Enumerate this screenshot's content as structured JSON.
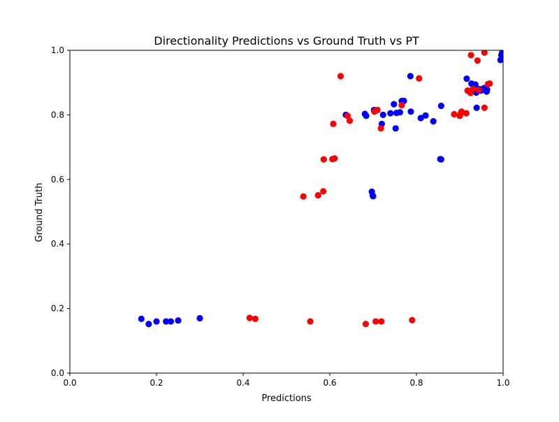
{
  "chart_data": {
    "type": "scatter",
    "title": "Directionality Predictions vs Ground Truth vs PT",
    "xlabel": "Predictions",
    "ylabel": "Ground Truth",
    "xlim": [
      0.0,
      1.0
    ],
    "ylim": [
      0.0,
      1.0
    ],
    "xticks": [
      "0.0",
      "0.2",
      "0.4",
      "0.6",
      "0.8",
      "1.0"
    ],
    "yticks": [
      "0.0",
      "0.2",
      "0.4",
      "0.6",
      "0.8",
      "1.0"
    ],
    "grid": false,
    "legend": null,
    "series": [
      {
        "color": "#0000ff",
        "points": [
          [
            0.165,
            0.168
          ],
          [
            0.182,
            0.152
          ],
          [
            0.2,
            0.16
          ],
          [
            0.222,
            0.16
          ],
          [
            0.233,
            0.16
          ],
          [
            0.25,
            0.163
          ],
          [
            0.3,
            0.17
          ],
          [
            0.637,
            0.8
          ],
          [
            0.681,
            0.803
          ],
          [
            0.684,
            0.797
          ],
          [
            0.697,
            0.562
          ],
          [
            0.699,
            0.55
          ],
          [
            0.7,
            0.548
          ],
          [
            0.702,
            0.815
          ],
          [
            0.72,
            0.772
          ],
          [
            0.723,
            0.8
          ],
          [
            0.74,
            0.805
          ],
          [
            0.748,
            0.833
          ],
          [
            0.752,
            0.758
          ],
          [
            0.754,
            0.806
          ],
          [
            0.762,
            0.808
          ],
          [
            0.766,
            0.843
          ],
          [
            0.771,
            0.843
          ],
          [
            0.786,
            0.92
          ],
          [
            0.787,
            0.81
          ],
          [
            0.81,
            0.79
          ],
          [
            0.821,
            0.798
          ],
          [
            0.839,
            0.78
          ],
          [
            0.855,
            0.663
          ],
          [
            0.857,
            0.662
          ],
          [
            0.857,
            0.828
          ],
          [
            0.916,
            0.912
          ],
          [
            0.927,
            0.897
          ],
          [
            0.936,
            0.894
          ],
          [
            0.938,
            0.869
          ],
          [
            0.939,
            0.822
          ],
          [
            0.945,
            0.88
          ],
          [
            0.949,
            0.875
          ],
          [
            0.956,
            0.883
          ],
          [
            0.962,
            0.872
          ],
          [
            0.963,
            0.878
          ],
          [
            0.994,
            0.97
          ],
          [
            0.996,
            0.985
          ],
          [
            0.998,
            0.993
          ]
        ]
      },
      {
        "color": "#ff0000",
        "points": [
          [
            0.415,
            0.171
          ],
          [
            0.428,
            0.168
          ],
          [
            0.539,
            0.547
          ],
          [
            0.555,
            0.16
          ],
          [
            0.573,
            0.551
          ],
          [
            0.585,
            0.563
          ],
          [
            0.586,
            0.662
          ],
          [
            0.606,
            0.663
          ],
          [
            0.608,
            0.772
          ],
          [
            0.611,
            0.665
          ],
          [
            0.625,
            0.92
          ],
          [
            0.641,
            0.797
          ],
          [
            0.646,
            0.782
          ],
          [
            0.683,
            0.152
          ],
          [
            0.703,
            0.81
          ],
          [
            0.706,
            0.16
          ],
          [
            0.71,
            0.815
          ],
          [
            0.718,
            0.758
          ],
          [
            0.719,
            0.16
          ],
          [
            0.766,
            0.83
          ],
          [
            0.79,
            0.164
          ],
          [
            0.806,
            0.913
          ],
          [
            0.887,
            0.802
          ],
          [
            0.9,
            0.797
          ],
          [
            0.902,
            0.804
          ],
          [
            0.904,
            0.81
          ],
          [
            0.915,
            0.805
          ],
          [
            0.918,
            0.875
          ],
          [
            0.921,
            0.873
          ],
          [
            0.925,
            0.868
          ],
          [
            0.926,
            0.985
          ],
          [
            0.93,
            0.88
          ],
          [
            0.941,
            0.968
          ],
          [
            0.944,
            0.877
          ],
          [
            0.957,
            0.822
          ],
          [
            0.957,
            0.993
          ],
          [
            0.965,
            0.895
          ],
          [
            0.969,
            0.897
          ]
        ]
      }
    ]
  }
}
